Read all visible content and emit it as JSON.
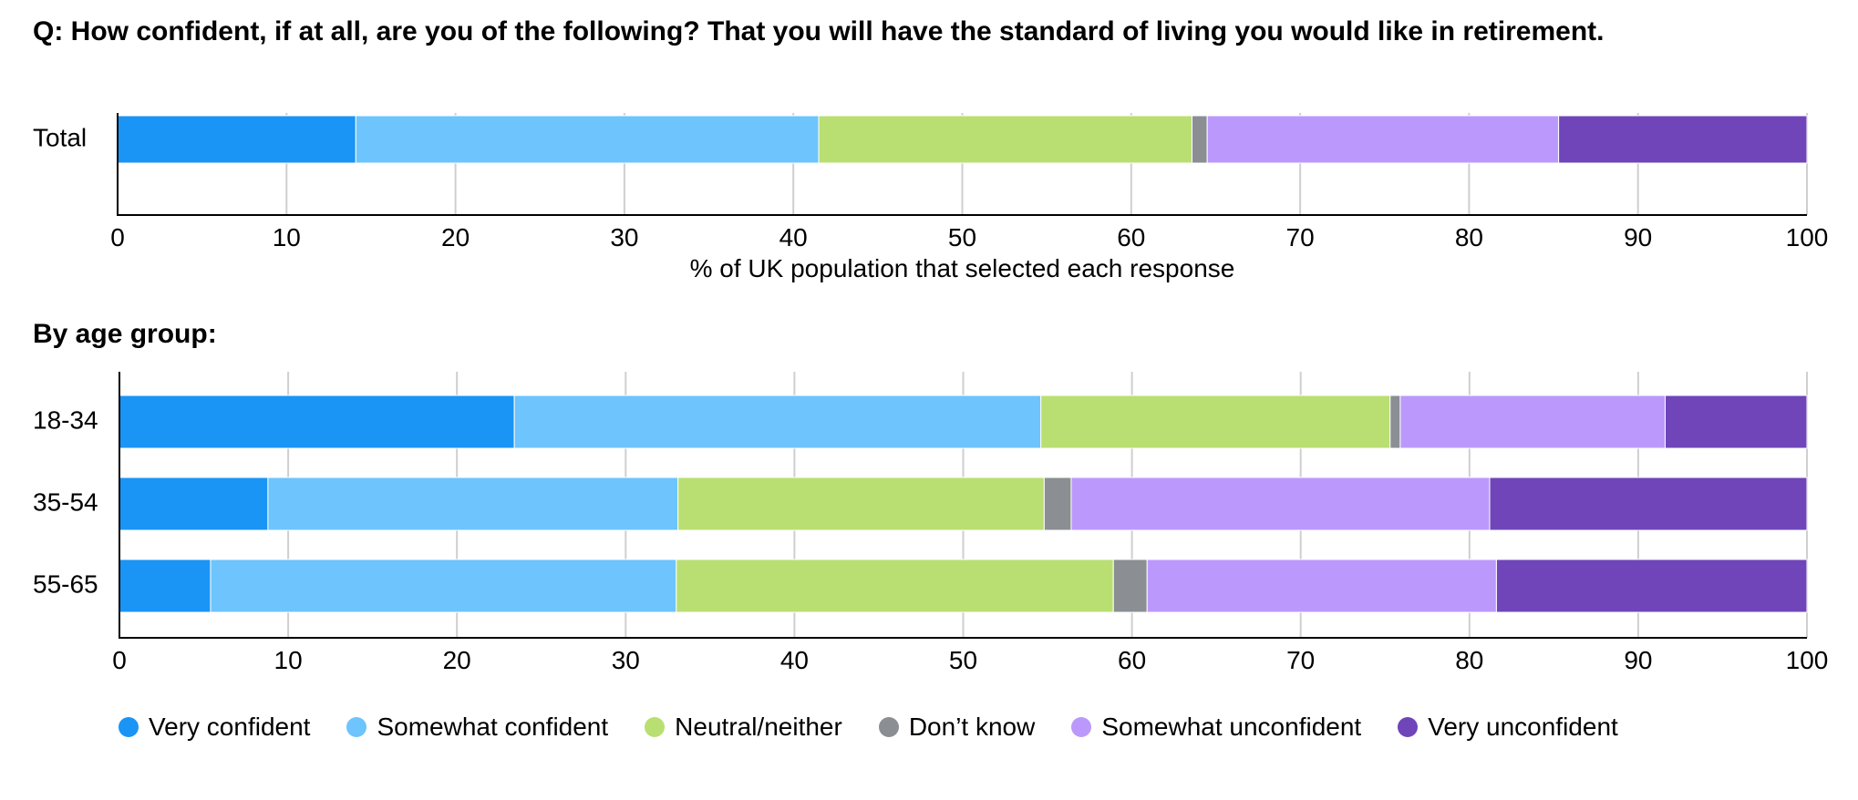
{
  "title": "Q: How confident, if at all, are you of the following? That you will have the standard of living you would like in retirement.",
  "age_section_title": "By age group:",
  "chart_data": [
    {
      "type": "bar",
      "orientation": "horizontal",
      "stacked": true,
      "categories": [
        "Total"
      ],
      "series": [
        {
          "name": "Very confident",
          "color": "#1a94f5",
          "values": [
            14.1
          ]
        },
        {
          "name": "Somewhat confident",
          "color": "#6ec4fc",
          "values": [
            27.4
          ]
        },
        {
          "name": "Neutral/neither",
          "color": "#b9df72",
          "values": [
            22.1
          ]
        },
        {
          "name": "Don’t know",
          "color": "#8b8e92",
          "values": [
            0.9
          ]
        },
        {
          "name": "Somewhat unconfident",
          "color": "#bb99fc",
          "values": [
            20.8
          ]
        },
        {
          "name": "Very unconfident",
          "color": "#6f45b9",
          "values": [
            14.7
          ]
        }
      ],
      "xlabel": "% of UK population that selected each response",
      "xlim": [
        0,
        100
      ],
      "xticks": [
        0,
        10,
        20,
        30,
        40,
        50,
        60,
        70,
        80,
        90,
        100
      ],
      "grid": true
    },
    {
      "type": "bar",
      "orientation": "horizontal",
      "stacked": true,
      "categories": [
        "18-34",
        "35-54",
        "55-65"
      ],
      "series": [
        {
          "name": "Very confident",
          "color": "#1a94f5",
          "values": [
            23.4,
            8.8,
            5.4
          ]
        },
        {
          "name": "Somewhat confident",
          "color": "#6ec4fc",
          "values": [
            31.2,
            24.3,
            27.6
          ]
        },
        {
          "name": "Neutral/neither",
          "color": "#b9df72",
          "values": [
            20.7,
            21.7,
            25.9
          ]
        },
        {
          "name": "Don’t know",
          "color": "#8b8e92",
          "values": [
            0.6,
            1.6,
            2.0
          ]
        },
        {
          "name": "Somewhat unconfident",
          "color": "#bb99fc",
          "values": [
            15.7,
            24.8,
            20.7
          ]
        },
        {
          "name": "Very unconfident",
          "color": "#6f45b9",
          "values": [
            8.4,
            18.8,
            18.4
          ]
        }
      ],
      "xlim": [
        0,
        100
      ],
      "xticks": [
        0,
        10,
        20,
        30,
        40,
        50,
        60,
        70,
        80,
        90,
        100
      ],
      "grid": true
    }
  ],
  "legend": [
    {
      "label": "Very confident",
      "color": "#1a94f5"
    },
    {
      "label": "Somewhat confident",
      "color": "#6ec4fc"
    },
    {
      "label": "Neutral/neither",
      "color": "#b9df72"
    },
    {
      "label": "Don’t know",
      "color": "#8b8e92"
    },
    {
      "label": "Somewhat unconfident",
      "color": "#bb99fc"
    },
    {
      "label": "Very unconfident",
      "color": "#6f45b9"
    }
  ]
}
